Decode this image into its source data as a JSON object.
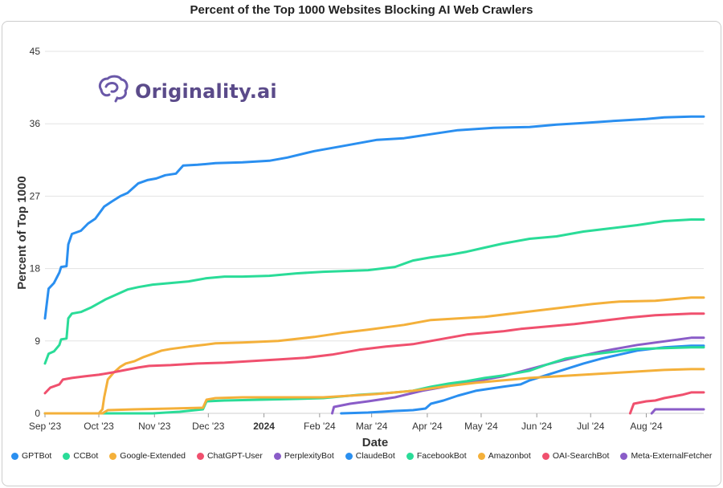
{
  "chart_data": {
    "type": "line",
    "title": "Percent of the Top 1000 Websites Blocking AI Web Crawlers",
    "xlabel": "Date",
    "ylabel": "Percent of Top 1000",
    "ylim": [
      0,
      45
    ],
    "yticks": [
      0,
      9,
      18,
      27,
      36,
      45
    ],
    "xlim_days": [
      0,
      367
    ],
    "xticks": [
      {
        "label": "Sep '23",
        "day": 0,
        "bold": false
      },
      {
        "label": "Oct '23",
        "day": 30,
        "bold": false
      },
      {
        "label": "Nov '23",
        "day": 61,
        "bold": false
      },
      {
        "label": "Dec '23",
        "day": 91,
        "bold": false
      },
      {
        "label": "2024",
        "day": 122,
        "bold": true
      },
      {
        "label": "Feb '24",
        "day": 153,
        "bold": false
      },
      {
        "label": "Mar '24",
        "day": 182,
        "bold": false
      },
      {
        "label": "Apr '24",
        "day": 213,
        "bold": false
      },
      {
        "label": "May '24",
        "day": 243,
        "bold": false
      },
      {
        "label": "Jun '24",
        "day": 274,
        "bold": false
      },
      {
        "label": "Jul '24",
        "day": 304,
        "bold": false
      },
      {
        "label": "Aug '24",
        "day": 335,
        "bold": false
      }
    ],
    "series": [
      {
        "name": "GPTBot",
        "color": "#2a8ff0",
        "points": [
          [
            0,
            11.8
          ],
          [
            2,
            15.5
          ],
          [
            5,
            16.2
          ],
          [
            8,
            17.5
          ],
          [
            9,
            18.2
          ],
          [
            12,
            18.3
          ],
          [
            13,
            21
          ],
          [
            15,
            22.3
          ],
          [
            20,
            22.7
          ],
          [
            24,
            23.6
          ],
          [
            28,
            24.2
          ],
          [
            33,
            25.7
          ],
          [
            37,
            26.3
          ],
          [
            42,
            27
          ],
          [
            46,
            27.4
          ],
          [
            52,
            28.6
          ],
          [
            57,
            29
          ],
          [
            62,
            29.2
          ],
          [
            67,
            29.6
          ],
          [
            73,
            29.8
          ],
          [
            77,
            30.8
          ],
          [
            85,
            30.9
          ],
          [
            95,
            31.1
          ],
          [
            110,
            31.2
          ],
          [
            125,
            31.4
          ],
          [
            135,
            31.8
          ],
          [
            150,
            32.6
          ],
          [
            165,
            33.2
          ],
          [
            185,
            34
          ],
          [
            200,
            34.2
          ],
          [
            215,
            34.7
          ],
          [
            230,
            35.2
          ],
          [
            250,
            35.5
          ],
          [
            270,
            35.6
          ],
          [
            285,
            35.9
          ],
          [
            300,
            36.1
          ],
          [
            320,
            36.4
          ],
          [
            335,
            36.6
          ],
          [
            345,
            36.8
          ],
          [
            360,
            36.9
          ],
          [
            367,
            36.9
          ]
        ]
      },
      {
        "name": "CCBot",
        "color": "#2adc98",
        "points": [
          [
            0,
            6.2
          ],
          [
            2,
            7.4
          ],
          [
            5,
            7.7
          ],
          [
            8,
            8.5
          ],
          [
            9,
            9.2
          ],
          [
            12,
            9.3
          ],
          [
            13,
            11.8
          ],
          [
            15,
            12.4
          ],
          [
            20,
            12.6
          ],
          [
            26,
            13.2
          ],
          [
            34,
            14.2
          ],
          [
            40,
            14.8
          ],
          [
            46,
            15.4
          ],
          [
            52,
            15.7
          ],
          [
            60,
            16
          ],
          [
            70,
            16.2
          ],
          [
            80,
            16.4
          ],
          [
            90,
            16.8
          ],
          [
            100,
            17
          ],
          [
            110,
            17
          ],
          [
            125,
            17.1
          ],
          [
            140,
            17.4
          ],
          [
            155,
            17.6
          ],
          [
            180,
            17.8
          ],
          [
            195,
            18.2
          ],
          [
            205,
            19
          ],
          [
            215,
            19.4
          ],
          [
            225,
            19.7
          ],
          [
            235,
            20.1
          ],
          [
            245,
            20.6
          ],
          [
            255,
            21.1
          ],
          [
            270,
            21.7
          ],
          [
            285,
            22
          ],
          [
            300,
            22.6
          ],
          [
            315,
            23
          ],
          [
            330,
            23.4
          ],
          [
            345,
            23.9
          ],
          [
            360,
            24.1
          ],
          [
            367,
            24.1
          ]
        ]
      },
      {
        "name": "Google-Extended",
        "color": "#f4b03a",
        "points": [
          [
            0,
            0
          ],
          [
            30,
            0
          ],
          [
            32,
            0.5
          ],
          [
            33,
            2
          ],
          [
            35,
            4.2
          ],
          [
            38,
            5
          ],
          [
            42,
            5.8
          ],
          [
            45,
            6.2
          ],
          [
            50,
            6.5
          ],
          [
            55,
            7
          ],
          [
            60,
            7.4
          ],
          [
            65,
            7.8
          ],
          [
            70,
            8
          ],
          [
            80,
            8.3
          ],
          [
            88,
            8.5
          ],
          [
            95,
            8.7
          ],
          [
            110,
            8.8
          ],
          [
            130,
            9
          ],
          [
            150,
            9.5
          ],
          [
            165,
            10
          ],
          [
            180,
            10.4
          ],
          [
            200,
            11
          ],
          [
            215,
            11.6
          ],
          [
            230,
            11.8
          ],
          [
            245,
            12
          ],
          [
            260,
            12.4
          ],
          [
            275,
            12.8
          ],
          [
            290,
            13.2
          ],
          [
            305,
            13.6
          ],
          [
            320,
            13.9
          ],
          [
            340,
            14
          ],
          [
            360,
            14.4
          ],
          [
            367,
            14.4
          ]
        ]
      },
      {
        "name": "ChatGPT-User",
        "color": "#f0506e",
        "points": [
          [
            0,
            2.5
          ],
          [
            3,
            3.2
          ],
          [
            8,
            3.6
          ],
          [
            10,
            4.2
          ],
          [
            15,
            4.4
          ],
          [
            22,
            4.6
          ],
          [
            30,
            4.8
          ],
          [
            38,
            5.1
          ],
          [
            45,
            5.4
          ],
          [
            52,
            5.7
          ],
          [
            58,
            5.9
          ],
          [
            70,
            6
          ],
          [
            85,
            6.2
          ],
          [
            100,
            6.3
          ],
          [
            115,
            6.5
          ],
          [
            130,
            6.7
          ],
          [
            145,
            6.9
          ],
          [
            160,
            7.3
          ],
          [
            175,
            7.9
          ],
          [
            190,
            8.3
          ],
          [
            205,
            8.6
          ],
          [
            215,
            9
          ],
          [
            225,
            9.4
          ],
          [
            235,
            9.8
          ],
          [
            245,
            10
          ],
          [
            255,
            10.2
          ],
          [
            265,
            10.5
          ],
          [
            280,
            10.8
          ],
          [
            295,
            11.1
          ],
          [
            310,
            11.5
          ],
          [
            325,
            11.9
          ],
          [
            340,
            12.2
          ],
          [
            360,
            12.4
          ],
          [
            367,
            12.4
          ]
        ]
      },
      {
        "name": "PerplexityBot",
        "color": "#8a5cc8",
        "points": [
          [
            160,
            0
          ],
          [
            161,
            0.8
          ],
          [
            170,
            1.2
          ],
          [
            180,
            1.5
          ],
          [
            195,
            2
          ],
          [
            210,
            2.8
          ],
          [
            225,
            3.4
          ],
          [
            240,
            4
          ],
          [
            255,
            4.6
          ],
          [
            270,
            5.5
          ],
          [
            285,
            6.4
          ],
          [
            300,
            7.2
          ],
          [
            310,
            7.7
          ],
          [
            320,
            8.1
          ],
          [
            330,
            8.5
          ],
          [
            340,
            8.8
          ],
          [
            350,
            9.1
          ],
          [
            360,
            9.4
          ],
          [
            367,
            9.4
          ]
        ]
      },
      {
        "name": "ClaudeBot",
        "color": "#2a8ff0",
        "points": [
          [
            165,
            0
          ],
          [
            180,
            0.1
          ],
          [
            195,
            0.3
          ],
          [
            205,
            0.4
          ],
          [
            212,
            0.6
          ],
          [
            215,
            1.2
          ],
          [
            222,
            1.6
          ],
          [
            230,
            2.2
          ],
          [
            240,
            2.8
          ],
          [
            255,
            3.3
          ],
          [
            265,
            3.6
          ],
          [
            270,
            4.1
          ],
          [
            280,
            4.8
          ],
          [
            290,
            5.5
          ],
          [
            300,
            6.2
          ],
          [
            310,
            6.8
          ],
          [
            320,
            7.3
          ],
          [
            330,
            7.8
          ],
          [
            345,
            8.2
          ],
          [
            360,
            8.4
          ],
          [
            367,
            8.4
          ]
        ]
      },
      {
        "name": "FacebookBot",
        "color": "#2adc98",
        "points": [
          [
            0,
            0
          ],
          [
            60,
            0
          ],
          [
            75,
            0.2
          ],
          [
            88,
            0.5
          ],
          [
            90,
            1.5
          ],
          [
            100,
            1.6
          ],
          [
            120,
            1.7
          ],
          [
            140,
            1.8
          ],
          [
            155,
            1.9
          ],
          [
            175,
            2.3
          ],
          [
            190,
            2.5
          ],
          [
            205,
            2.8
          ],
          [
            215,
            3.3
          ],
          [
            225,
            3.7
          ],
          [
            235,
            4
          ],
          [
            245,
            4.4
          ],
          [
            255,
            4.7
          ],
          [
            270,
            5.3
          ],
          [
            280,
            6.1
          ],
          [
            290,
            6.8
          ],
          [
            300,
            7.2
          ],
          [
            315,
            7.6
          ],
          [
            330,
            8
          ],
          [
            345,
            8.1
          ],
          [
            360,
            8.2
          ],
          [
            367,
            8.2
          ]
        ]
      },
      {
        "name": "Amazonbot",
        "color": "#f4b03a",
        "points": [
          [
            0,
            0
          ],
          [
            32,
            0
          ],
          [
            35,
            0.4
          ],
          [
            50,
            0.5
          ],
          [
            70,
            0.6
          ],
          [
            88,
            0.7
          ],
          [
            90,
            1.7
          ],
          [
            95,
            1.9
          ],
          [
            110,
            2
          ],
          [
            125,
            2
          ],
          [
            140,
            2
          ],
          [
            155,
            2
          ],
          [
            170,
            2.2
          ],
          [
            185,
            2.4
          ],
          [
            195,
            2.6
          ],
          [
            205,
            2.8
          ],
          [
            215,
            3.1
          ],
          [
            225,
            3.4
          ],
          [
            240,
            3.8
          ],
          [
            255,
            4.1
          ],
          [
            270,
            4.4
          ],
          [
            285,
            4.6
          ],
          [
            300,
            4.8
          ],
          [
            315,
            5
          ],
          [
            330,
            5.2
          ],
          [
            345,
            5.4
          ],
          [
            360,
            5.5
          ],
          [
            367,
            5.5
          ]
        ]
      },
      {
        "name": "OAI-SearchBot",
        "color": "#f0506e",
        "points": [
          [
            326,
            0
          ],
          [
            328,
            1.2
          ],
          [
            335,
            1.5
          ],
          [
            340,
            1.6
          ],
          [
            345,
            1.9
          ],
          [
            355,
            2.3
          ],
          [
            360,
            2.6
          ],
          [
            367,
            2.6
          ]
        ]
      },
      {
        "name": "Meta-ExternalFetcher",
        "color": "#8a5cc8",
        "points": [
          [
            338,
            0
          ],
          [
            340,
            0.5
          ],
          [
            367,
            0.5
          ]
        ]
      }
    ]
  },
  "logo": {
    "text": "Originality.ai"
  }
}
